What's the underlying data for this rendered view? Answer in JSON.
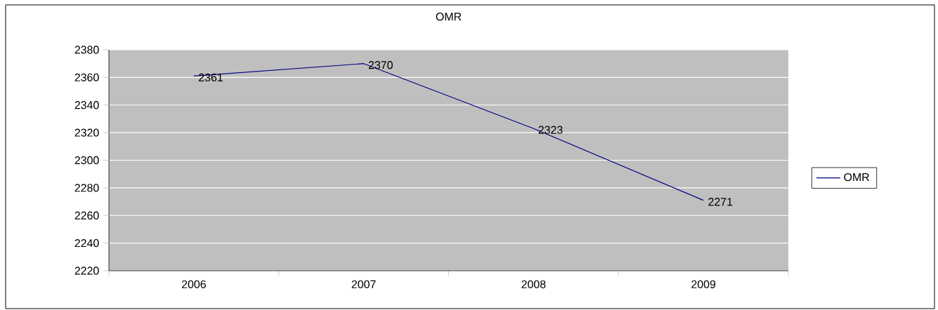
{
  "chart_data": {
    "type": "line",
    "title": "OMR",
    "categories": [
      "2006",
      "2007",
      "2008",
      "2009"
    ],
    "series": [
      {
        "name": "OMR",
        "color": "#000080",
        "values": [
          2361,
          2370,
          2323,
          2271
        ]
      }
    ],
    "ylim": [
      2220,
      2380
    ],
    "yticks": [
      2220,
      2240,
      2260,
      2280,
      2300,
      2320,
      2340,
      2360,
      2380
    ],
    "grid": "y",
    "legend": "right",
    "data_labels": true,
    "marker": "none",
    "line_style": "solid"
  }
}
